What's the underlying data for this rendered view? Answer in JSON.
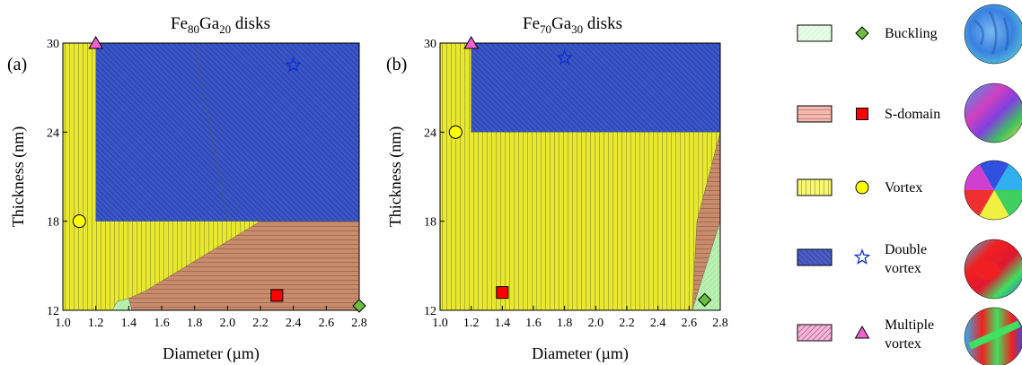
{
  "chart_data": [
    {
      "type": "area",
      "panel_label": "(a)",
      "title_base1": "Fe",
      "title_sub1": "80",
      "title_base2": "Ga",
      "title_sub2": "20",
      "title_rest": " disks",
      "xlabel": "Diameter (µm)",
      "ylabel": "Thickness (nm)",
      "xlim": [
        1.0,
        2.8
      ],
      "ylim": [
        12,
        30
      ],
      "xticks": [
        "1.0",
        "1.2",
        "1.4",
        "1.6",
        "1.8",
        "2.0",
        "2.2",
        "2.4",
        "2.6",
        "2.8"
      ],
      "yticks": [
        "12",
        "18",
        "24",
        "30"
      ],
      "regions": [
        {
          "phase": "Vortex",
          "polygon": [
            [
              1.0,
              12
            ],
            [
              2.8,
              12
            ],
            [
              2.8,
              30
            ],
            [
              1.0,
              30
            ]
          ]
        },
        {
          "phase": "Buckling",
          "polygon": [
            [
              1.3,
              12
            ],
            [
              1.42,
              12
            ],
            [
              1.4,
              12.8
            ],
            [
              1.33,
              12.6
            ]
          ]
        },
        {
          "phase": "S-domain",
          "polygon": [
            [
              1.42,
              12
            ],
            [
              2.8,
              12
            ],
            [
              2.8,
              18
            ],
            [
              2.2,
              18
            ],
            [
              1.5,
              13.3
            ],
            [
              1.4,
              12.8
            ]
          ]
        },
        {
          "phase": "Double vortex",
          "polygon": [
            [
              1.2,
              18
            ],
            [
              2.0,
              18
            ],
            [
              1.8,
              30
            ],
            [
              1.2,
              30
            ]
          ]
        },
        {
          "phase": "Double vortex",
          "polygon": [
            [
              1.8,
              30
            ],
            [
              2.8,
              30
            ],
            [
              2.8,
              18
            ],
            [
              2.0,
              18
            ]
          ]
        }
      ],
      "markers": [
        {
          "phase": "Multiple vortex",
          "x": 1.2,
          "y": 30
        },
        {
          "phase": "Double vortex",
          "x": 2.4,
          "y": 28.5
        },
        {
          "phase": "Vortex",
          "x": 1.1,
          "y": 18
        },
        {
          "phase": "S-domain",
          "x": 2.3,
          "y": 13
        },
        {
          "phase": "Buckling",
          "x": 2.8,
          "y": 12.3
        }
      ]
    },
    {
      "type": "area",
      "panel_label": "(b)",
      "title_base1": "Fe",
      "title_sub1": "70",
      "title_base2": "Ga",
      "title_sub2": "30",
      "title_rest": " disks",
      "xlabel": "Diameter (µm)",
      "ylabel": "Thickness (nm)",
      "xlim": [
        1.0,
        2.8
      ],
      "ylim": [
        12,
        30
      ],
      "xticks": [
        "1.0",
        "1.2",
        "1.4",
        "1.6",
        "1.8",
        "2.0",
        "2.2",
        "2.4",
        "2.6",
        "2.8"
      ],
      "yticks": [
        "12",
        "18",
        "24",
        "30"
      ],
      "regions": [
        {
          "phase": "Vortex",
          "polygon": [
            [
              1.0,
              12
            ],
            [
              2.8,
              12
            ],
            [
              2.8,
              30
            ],
            [
              1.0,
              30
            ]
          ]
        },
        {
          "phase": "Double vortex",
          "polygon": [
            [
              1.2,
              24
            ],
            [
              2.8,
              24
            ],
            [
              2.8,
              30
            ],
            [
              1.2,
              30
            ]
          ]
        },
        {
          "phase": "S-domain",
          "polygon": [
            [
              2.05,
              12
            ],
            [
              2.62,
              12
            ],
            [
              2.65,
              18
            ],
            [
              2.8,
              24
            ],
            [
              2.8,
              12
            ]
          ]
        },
        {
          "phase": "Buckling",
          "polygon": [
            [
              2.62,
              12
            ],
            [
              2.8,
              12
            ],
            [
              2.8,
              18
            ]
          ]
        }
      ],
      "markers": [
        {
          "phase": "Multiple vortex",
          "x": 1.2,
          "y": 30
        },
        {
          "phase": "Double vortex",
          "x": 1.8,
          "y": 29
        },
        {
          "phase": "Vortex",
          "x": 1.1,
          "y": 24
        },
        {
          "phase": "S-domain",
          "x": 1.4,
          "y": 13.2
        },
        {
          "phase": "Buckling",
          "x": 2.7,
          "y": 12.7
        }
      ]
    }
  ],
  "legend": [
    {
      "phase": "Buckling",
      "label_lines": [
        "Buckling"
      ],
      "fill": "#e6fde6",
      "marker": "diamond",
      "marker_color": "#6abf40"
    },
    {
      "phase": "S-domain",
      "label_lines": [
        "S-domain"
      ],
      "fill": "#f4b8b0",
      "marker": "square",
      "marker_color": "#ff0000"
    },
    {
      "phase": "Vortex",
      "label_lines": [
        "Vortex"
      ],
      "fill": "#f8f870",
      "marker": "circle",
      "marker_color": "#ffff00"
    },
    {
      "phase": "Double vortex",
      "label_lines": [
        "Double",
        "vortex"
      ],
      "fill": "#4a5ec8",
      "marker": "star",
      "marker_color": "#1030d0"
    },
    {
      "phase": "Multiple vortex",
      "label_lines": [
        "Multiple",
        "vortex"
      ],
      "fill": "#f4b8d8",
      "marker": "triangle",
      "marker_color": "#f060d0"
    }
  ],
  "colors": {
    "Vortex": "#e8e830",
    "S-domain": "#c88c6c",
    "Double vortex": "#3a56c8",
    "Buckling": "#b8f0b0",
    "Multiple vortex": "#f060d0"
  },
  "icons": [
    "buckling-domain-image",
    "s-domain-image",
    "vortex-domain-image",
    "double-vortex-domain-image",
    "multiple-vortex-domain-image"
  ]
}
